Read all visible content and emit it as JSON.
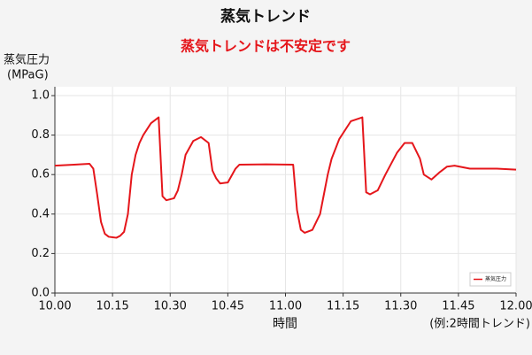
{
  "chart_data": {
    "type": "line",
    "title": "蒸気トレンド",
    "subtitle": "蒸気トレンドは不安定です",
    "y_label": "蒸気圧力",
    "y_unit": "(MPaG)",
    "x_label": "時間",
    "note": "(例:2時間トレンド)",
    "x": [
      "10.00",
      "10.05",
      "10.09",
      "10.10",
      "10.11",
      "10.12",
      "10.13",
      "10.14",
      "10.16",
      "10.17",
      "10.18",
      "10.19",
      "10.20",
      "10.21",
      "10.22",
      "10.23",
      "10.25",
      "10.27",
      "10.28",
      "10.29",
      "10.31",
      "10.32",
      "10.33",
      "10.34",
      "10.36",
      "10.38",
      "10.40",
      "10.41",
      "10.42",
      "10.43",
      "10.45",
      "10.47",
      "10.48",
      "10.55",
      "11.02",
      "11.03",
      "11.04",
      "11.05",
      "11.07",
      "11.09",
      "11.10",
      "11.11",
      "11.12",
      "11.14",
      "11.17",
      "11.20",
      "11.21",
      "11.22",
      "11.24",
      "11.26",
      "11.29",
      "11.31",
      "11.33",
      "11.35",
      "11.36",
      "11.38",
      "11.40",
      "11.42",
      "11.44",
      "11.48",
      "11.55",
      "12.00"
    ],
    "series": [
      {
        "name": "蒸気圧力",
        "color": "#e5161b",
        "values": [
          0.645,
          0.65,
          0.655,
          0.63,
          0.5,
          0.36,
          0.3,
          0.285,
          0.28,
          0.29,
          0.31,
          0.4,
          0.6,
          0.7,
          0.76,
          0.8,
          0.86,
          0.89,
          0.49,
          0.47,
          0.48,
          0.52,
          0.6,
          0.7,
          0.77,
          0.79,
          0.76,
          0.62,
          0.58,
          0.555,
          0.56,
          0.63,
          0.65,
          0.652,
          0.65,
          0.42,
          0.32,
          0.305,
          0.32,
          0.4,
          0.5,
          0.6,
          0.68,
          0.78,
          0.87,
          0.89,
          0.51,
          0.5,
          0.52,
          0.6,
          0.71,
          0.76,
          0.76,
          0.68,
          0.6,
          0.575,
          0.61,
          0.64,
          0.645,
          0.63,
          0.63,
          0.625
        ]
      }
    ],
    "xlim": [
      "10.00",
      "12.00"
    ],
    "xticks": [
      "10.00",
      "10.15",
      "10.30",
      "10.45",
      "11.00",
      "11.15",
      "11.30",
      "11.45",
      "12.00"
    ],
    "ylim": [
      0,
      1
    ],
    "yticks": [
      {
        "value": 0,
        "label": "0.0"
      },
      0.2,
      0.4,
      0.6,
      0.8,
      {
        "value": 1,
        "label": "1.0"
      }
    ],
    "grid": true,
    "legend": "lower right"
  }
}
